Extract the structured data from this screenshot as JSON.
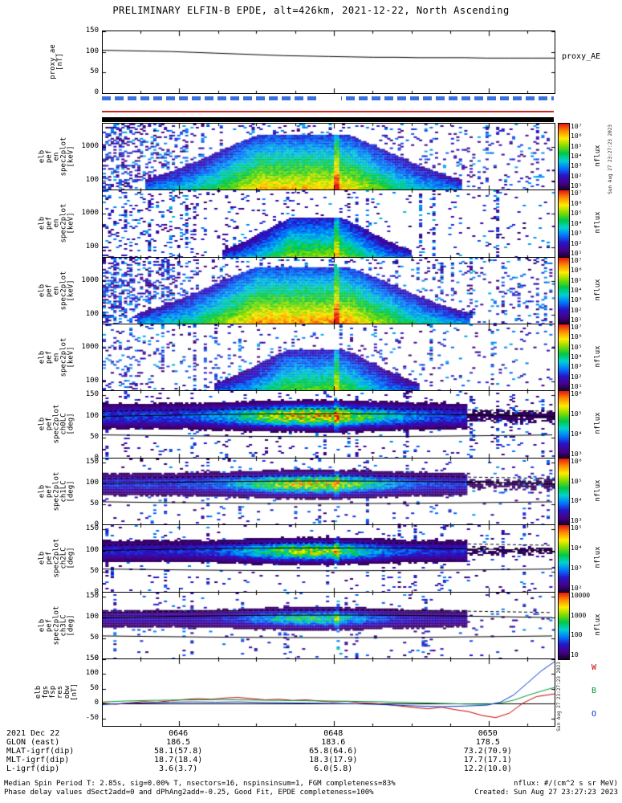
{
  "title": "PRELIMINARY ELFIN-B EPDE, alt=426km, 2021-12-22, North Ascending",
  "annotations": {
    "proxy_right_label": "proxy_AE",
    "created_vertical": "Sun Aug 27 23:27:23 2023",
    "bottom_right_labels": [
      {
        "text": "W",
        "color": "#cc0000"
      },
      {
        "text": "B",
        "color": "#009933"
      },
      {
        "text": "O",
        "color": "#0033cc"
      }
    ]
  },
  "status_bars": {
    "science_dash_color": "#3b72e0",
    "line_color": "#cc2222",
    "black_bar_color": "#000000",
    "gap_frac_start": 0.48,
    "gap_frac_width": 0.05
  },
  "table": {
    "value_fracs": [
      0.169,
      0.512,
      0.854
    ],
    "rows": [
      {
        "label": "2021 Dec 22",
        "values": [
          "0646",
          "0648",
          "0650"
        ]
      },
      {
        "label": "GLON (east)",
        "values": [
          "186.5",
          "183.6",
          "178.5"
        ]
      },
      {
        "label": "MLAT-igrf(dip)",
        "values": [
          "58.1(57.8)",
          "65.8(64.6)",
          "73.2(70.9)"
        ]
      },
      {
        "label": "MLT-igrf(dip)",
        "values": [
          "18.7(18.4)",
          "18.3(17.9)",
          "17.7(17.1)"
        ]
      },
      {
        "label": "L-igrf(dip)",
        "values": [
          "3.6(3.7)",
          "6.0(5.8)",
          "12.2(10.0)"
        ]
      }
    ]
  },
  "footer": {
    "left_lines": [
      "Median Spin Period T: 2.85s, sig=0.00% T, nsectors=16, nspinsinsum=1, FGM completeness=83%",
      "Phase delay values dSect2add=0 and dPhAng2add=-0.25, Good Fit, EPDE completeness=100%"
    ],
    "right_lines": [
      "nflux: #/(cm^2 s sr MeV)",
      "Created: Sun Aug 27 23:27:23 2023"
    ]
  },
  "chart_data": [
    {
      "id": "proxy-ae",
      "type": "line",
      "ylabel_lines": [
        "proxy_ae",
        "[nT]"
      ],
      "ylim": [
        0,
        150
      ],
      "yticks": [
        150,
        100,
        50,
        0
      ],
      "series": [
        {
          "name": "proxy_AE",
          "color": "#000000",
          "points": [
            [
              0,
              104
            ],
            [
              0.05,
              103
            ],
            [
              0.1,
              102
            ],
            [
              0.15,
              101
            ],
            [
              0.2,
              99
            ],
            [
              0.25,
              97
            ],
            [
              0.3,
              95
            ],
            [
              0.35,
              93
            ],
            [
              0.4,
              91
            ],
            [
              0.45,
              90
            ],
            [
              0.5,
              89
            ],
            [
              0.55,
              88
            ],
            [
              0.6,
              87
            ],
            [
              0.65,
              87
            ],
            [
              0.7,
              86
            ],
            [
              0.75,
              86
            ],
            [
              0.8,
              86
            ],
            [
              0.85,
              85
            ],
            [
              0.9,
              85
            ],
            [
              0.95,
              85
            ],
            [
              1,
              85
            ]
          ]
        }
      ]
    },
    {
      "id": "en-spec-a",
      "type": "heatmap",
      "heatmap_kind": "energy",
      "ylabel_lines": [
        "elb",
        "pef",
        "en",
        "spec2plot",
        "[keV]"
      ],
      "yscale": "log",
      "ylim": [
        50,
        5000
      ],
      "yticks": [
        1000,
        100
      ],
      "colorbar": {
        "label": "nflux",
        "tick_labels": [
          "10⁷",
          "10⁶",
          "10⁵",
          "10⁴",
          "10³",
          "10²",
          "10¹"
        ]
      },
      "render": {
        "center": 0.44,
        "width": 0.2,
        "strength": 0.95,
        "max_energy_kev": 2500,
        "noise": 0.09,
        "left_noise": 0.3,
        "seed": 11
      }
    },
    {
      "id": "en-spec-b",
      "type": "heatmap",
      "heatmap_kind": "energy",
      "ylabel_lines": [
        "elb",
        "pef",
        "en",
        "spec2plot",
        "[keV]"
      ],
      "yscale": "log",
      "ylim": [
        50,
        5000
      ],
      "yticks": [
        1000,
        100
      ],
      "colorbar": {
        "label": "nflux",
        "tick_labels": [
          "10⁷",
          "10⁶",
          "10⁵",
          "10⁴",
          "10³",
          "10²",
          "10¹"
        ]
      },
      "render": {
        "center": 0.47,
        "width": 0.12,
        "strength": 0.8,
        "max_energy_kev": 800,
        "noise": 0.05,
        "left_noise": 0.1,
        "seed": 12
      }
    },
    {
      "id": "en-spec-c",
      "type": "heatmap",
      "heatmap_kind": "energy",
      "ylabel_lines": [
        "elb",
        "pef",
        "en",
        "spec2plot",
        "[keV]"
      ],
      "yscale": "log",
      "ylim": [
        50,
        5000
      ],
      "yticks": [
        1000,
        100
      ],
      "colorbar": {
        "label": "nflux",
        "tick_labels": [
          "10⁷",
          "10⁶",
          "10⁵",
          "10⁴",
          "10³",
          "10²",
          "10¹"
        ]
      },
      "render": {
        "center": 0.44,
        "width": 0.21,
        "strength": 1.0,
        "max_energy_kev": 2800,
        "noise": 0.09,
        "left_noise": 0.3,
        "seed": 13
      }
    },
    {
      "id": "en-spec-d",
      "type": "heatmap",
      "heatmap_kind": "energy",
      "ylabel_lines": [
        "elb",
        "pef",
        "en",
        "spec2plot",
        "[keV]"
      ],
      "yscale": "log",
      "ylim": [
        50,
        5000
      ],
      "yticks": [
        1000,
        100
      ],
      "colorbar": {
        "label": "nflux",
        "tick_labels": [
          "10⁷",
          "10⁶",
          "10⁵",
          "10⁴",
          "10³",
          "10²",
          "10¹"
        ]
      },
      "render": {
        "center": 0.47,
        "width": 0.13,
        "strength": 0.75,
        "max_energy_kev": 900,
        "noise": 0.05,
        "left_noise": 0.12,
        "seed": 14
      }
    },
    {
      "id": "ch0lc",
      "type": "heatmap",
      "heatmap_kind": "pitch",
      "ylabel_lines": [
        "elb",
        "pef",
        "spec2plot",
        "ch0LC",
        "[deg]"
      ],
      "ylim": [
        0,
        160
      ],
      "yticks": [
        150,
        100,
        50,
        0
      ],
      "colorbar": {
        "label": "nflux",
        "tick_labels": [
          "10⁶",
          "10⁵",
          "10⁴",
          "10³"
        ]
      },
      "render": {
        "band_center": 102,
        "band_width": 24,
        "base": 0.3,
        "core_strength": 0.55,
        "core_center": 0.46,
        "core_width": 0.17,
        "noise": 0.09,
        "seed": 21
      },
      "overlay_lines": [
        {
          "style": "solid",
          "deg": 100,
          "amp": 6
        },
        {
          "style": "dashed",
          "deg": 112,
          "amp": 6
        },
        {
          "style": "solid",
          "deg": 56,
          "amp": -4
        }
      ]
    },
    {
      "id": "ch1lc",
      "type": "heatmap",
      "heatmap_kind": "pitch",
      "ylabel_lines": [
        "elb",
        "pef",
        "spec2plot",
        "ch1LC",
        "[deg]"
      ],
      "ylim": [
        0,
        160
      ],
      "yticks": [
        150,
        100,
        50,
        0
      ],
      "colorbar": {
        "label": "nflux",
        "tick_labels": [
          "10⁶",
          "10⁵",
          "10⁴",
          "10³"
        ]
      },
      "render": {
        "band_center": 100,
        "band_width": 22,
        "base": 0.28,
        "core_strength": 0.52,
        "core_center": 0.46,
        "core_width": 0.16,
        "noise": 0.08,
        "seed": 22
      },
      "overlay_lines": [
        {
          "style": "solid",
          "deg": 100,
          "amp": 6
        },
        {
          "style": "dashed",
          "deg": 112,
          "amp": 6
        },
        {
          "style": "solid",
          "deg": 56,
          "amp": -4
        }
      ]
    },
    {
      "id": "ch2lc",
      "type": "heatmap",
      "heatmap_kind": "pitch",
      "ylabel_lines": [
        "elb",
        "pef",
        "spec2plot",
        "ch2LC",
        "[deg]"
      ],
      "ylim": [
        0,
        160
      ],
      "yticks": [
        150,
        100,
        50,
        0
      ],
      "colorbar": {
        "label": "nflux",
        "tick_labels": [
          "10⁵",
          "10⁴",
          "10³",
          "10²"
        ]
      },
      "render": {
        "band_center": 100,
        "band_width": 21,
        "base": 0.26,
        "core_strength": 0.47,
        "core_center": 0.46,
        "core_width": 0.15,
        "noise": 0.07,
        "seed": 23
      },
      "overlay_lines": [
        {
          "style": "solid",
          "deg": 100,
          "amp": 6
        },
        {
          "style": "dashed",
          "deg": 112,
          "amp": 6
        },
        {
          "style": "solid",
          "deg": 56,
          "amp": -4
        }
      ]
    },
    {
      "id": "ch3lc",
      "type": "heatmap",
      "heatmap_kind": "pitch",
      "ylabel_lines": [
        "elb",
        "pef",
        "spec2plot",
        "ch3LC",
        "[deg]"
      ],
      "ylim": [
        0,
        160
      ],
      "yticks": [
        150,
        100,
        50,
        0
      ],
      "colorbar": {
        "label": "nflux",
        "tick_labels": [
          "10000",
          "1000",
          "100",
          "10"
        ]
      },
      "render": {
        "band_center": 99,
        "band_width": 19,
        "base": 0.2,
        "core_strength": 0.38,
        "core_center": 0.46,
        "core_width": 0.14,
        "noise": 0.05,
        "seed": 24
      },
      "overlay_lines": [
        {
          "style": "solid",
          "deg": 100,
          "amp": 6
        },
        {
          "style": "dashed",
          "deg": 112,
          "amp": 6
        },
        {
          "style": "solid",
          "deg": 56,
          "amp": -4
        }
      ]
    },
    {
      "id": "obw",
      "type": "line",
      "zero_line": true,
      "ylabel_lines": [
        "elb",
        "fgs",
        "fsp",
        "res",
        "obw",
        "[nT]"
      ],
      "ylim": [
        -75,
        150
      ],
      "yticks": [
        150,
        100,
        50,
        0,
        -50
      ],
      "series": [
        {
          "name": "W",
          "color": "#cc0000",
          "points": [
            [
              0,
              2
            ],
            [
              0.03,
              -2
            ],
            [
              0.06,
              3
            ],
            [
              0.09,
              7
            ],
            [
              0.12,
              5
            ],
            [
              0.15,
              10
            ],
            [
              0.18,
              14
            ],
            [
              0.21,
              17
            ],
            [
              0.24,
              15
            ],
            [
              0.27,
              19
            ],
            [
              0.3,
              21
            ],
            [
              0.33,
              17
            ],
            [
              0.36,
              13
            ],
            [
              0.39,
              15
            ],
            [
              0.42,
              11
            ],
            [
              0.45,
              13
            ],
            [
              0.48,
              9
            ],
            [
              0.51,
              6
            ],
            [
              0.54,
              8
            ],
            [
              0.57,
              3
            ],
            [
              0.6,
              1
            ],
            [
              0.63,
              -3
            ],
            [
              0.66,
              -8
            ],
            [
              0.69,
              -13
            ],
            [
              0.72,
              -17
            ],
            [
              0.75,
              -12
            ],
            [
              0.78,
              -20
            ],
            [
              0.81,
              -27
            ],
            [
              0.84,
              -40
            ],
            [
              0.87,
              -47
            ],
            [
              0.9,
              -32
            ],
            [
              0.93,
              2
            ],
            [
              0.96,
              24
            ],
            [
              1,
              33
            ]
          ]
        },
        {
          "name": "B",
          "color": "#009933",
          "points": [
            [
              0,
              6
            ],
            [
              0.05,
              9
            ],
            [
              0.1,
              11
            ],
            [
              0.15,
              12
            ],
            [
              0.2,
              13
            ],
            [
              0.25,
              14
            ],
            [
              0.3,
              13
            ],
            [
              0.35,
              12
            ],
            [
              0.4,
              11
            ],
            [
              0.45,
              10
            ],
            [
              0.5,
              9
            ],
            [
              0.55,
              8
            ],
            [
              0.6,
              7
            ],
            [
              0.65,
              5
            ],
            [
              0.7,
              3
            ],
            [
              0.75,
              1
            ],
            [
              0.8,
              -1
            ],
            [
              0.85,
              -2
            ],
            [
              0.88,
              2
            ],
            [
              0.91,
              12
            ],
            [
              0.94,
              28
            ],
            [
              0.97,
              42
            ],
            [
              1,
              55
            ]
          ]
        },
        {
          "name": "O",
          "color": "#0033cc",
          "points": [
            [
              0,
              -3
            ],
            [
              0.05,
              1
            ],
            [
              0.1,
              3
            ],
            [
              0.15,
              5
            ],
            [
              0.2,
              6
            ],
            [
              0.25,
              5
            ],
            [
              0.3,
              6
            ],
            [
              0.35,
              4
            ],
            [
              0.4,
              3
            ],
            [
              0.45,
              2
            ],
            [
              0.5,
              1
            ],
            [
              0.55,
              0
            ],
            [
              0.6,
              -2
            ],
            [
              0.65,
              -5
            ],
            [
              0.7,
              -8
            ],
            [
              0.75,
              -10
            ],
            [
              0.8,
              -8
            ],
            [
              0.85,
              -5
            ],
            [
              0.88,
              5
            ],
            [
              0.91,
              30
            ],
            [
              0.94,
              70
            ],
            [
              0.97,
              110
            ],
            [
              1,
              142
            ]
          ]
        }
      ]
    }
  ]
}
